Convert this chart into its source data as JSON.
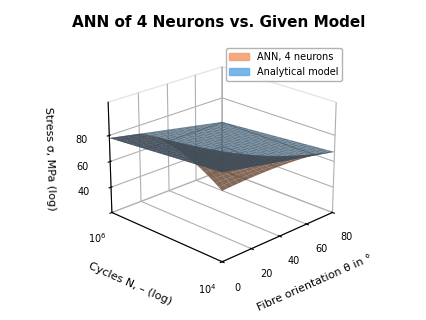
{
  "title": "ANN of 4 Neurons vs. Given Model",
  "xlabel": "Fibre orientation θ in °",
  "ylabel": "Cycles N, – (log)",
  "zlabel": "Stress σ, MPa (log)",
  "ann_color": "#F4A070",
  "analytical_color": "#6AAFE6",
  "ann_alpha": 0.8,
  "analytical_alpha": 0.75,
  "ann_label": "ANN, 4 neurons",
  "analytical_label": "Analytical model",
  "title_fontsize": 11,
  "axis_fontsize": 8,
  "tick_fontsize": 7,
  "zlim": [
    20,
    105
  ],
  "elev": 22,
  "azim": -135
}
